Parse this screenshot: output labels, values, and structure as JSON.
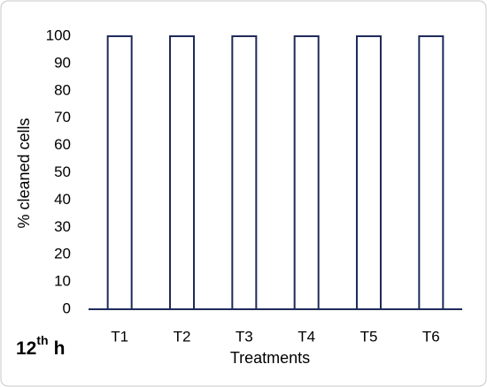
{
  "chart_data": {
    "type": "bar",
    "title_annotation": {
      "base": "12",
      "sup": "th",
      "tail": "h"
    },
    "x_label": "Treatments",
    "y_label": "% cleaned cells",
    "categories": [
      "T1",
      "T2",
      "T3",
      "T4",
      "T5",
      "T6"
    ],
    "values": [
      100,
      100,
      100,
      100,
      100,
      100
    ],
    "color": "#1f2a5a",
    "ylim": [
      0,
      100
    ],
    "yticks": [
      0,
      10,
      20,
      30,
      40,
      50,
      60,
      70,
      80,
      90,
      100
    ],
    "grid": false
  }
}
